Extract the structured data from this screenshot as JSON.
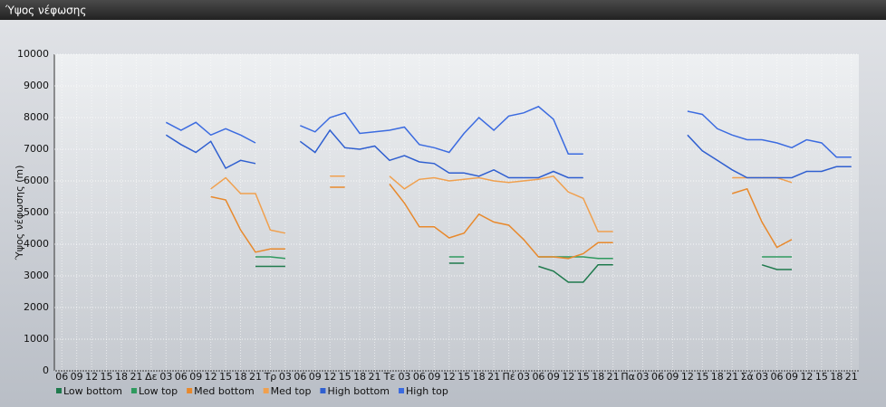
{
  "chart_data": {
    "type": "line",
    "title": "Ύψος νέφωσης",
    "y_label": "Ύψος νέφωσης (m)",
    "categories": [
      "06",
      "09",
      "12",
      "15",
      "18",
      "21",
      "Δε",
      "03",
      "06",
      "09",
      "12",
      "15",
      "18",
      "21",
      "Τρ",
      "03",
      "06",
      "09",
      "12",
      "15",
      "18",
      "21",
      "Τε",
      "03",
      "06",
      "09",
      "12",
      "15",
      "18",
      "21",
      "Πέ",
      "03",
      "06",
      "09",
      "12",
      "15",
      "18",
      "21",
      "Πα",
      "03",
      "06",
      "09",
      "12",
      "15",
      "18",
      "21",
      "Σά",
      "03",
      "06",
      "09",
      "12",
      "15",
      "18",
      "21"
    ],
    "ylim": [
      0,
      10000
    ],
    "yticks": [
      0,
      1000,
      2000,
      3000,
      4000,
      5000,
      6000,
      7000,
      8000,
      9000,
      10000
    ],
    "grid": true,
    "series": [
      {
        "name": "Low bottom",
        "color": "#1f7a4d",
        "values": [
          null,
          null,
          null,
          null,
          null,
          null,
          null,
          null,
          null,
          null,
          null,
          null,
          null,
          3300,
          3300,
          3300,
          null,
          null,
          null,
          null,
          null,
          null,
          null,
          null,
          null,
          null,
          3400,
          3400,
          null,
          null,
          null,
          null,
          3300,
          3150,
          2800,
          2800,
          3350,
          3350,
          null,
          null,
          null,
          null,
          null,
          null,
          null,
          null,
          null,
          3350,
          3200,
          3200,
          null,
          null,
          null,
          null
        ]
      },
      {
        "name": "Low top",
        "color": "#2e9a5e",
        "values": [
          null,
          null,
          null,
          null,
          null,
          null,
          null,
          null,
          null,
          null,
          null,
          null,
          null,
          3600,
          3600,
          3550,
          null,
          null,
          null,
          null,
          null,
          null,
          null,
          null,
          null,
          null,
          3600,
          3600,
          null,
          null,
          null,
          null,
          3600,
          3600,
          3600,
          3600,
          3550,
          3550,
          null,
          null,
          null,
          null,
          null,
          null,
          null,
          null,
          null,
          3600,
          3600,
          3600,
          null,
          null,
          null,
          null
        ]
      },
      {
        "name": "Med bottom",
        "color": "#e8892c",
        "values": [
          null,
          null,
          null,
          null,
          null,
          null,
          null,
          null,
          null,
          null,
          5500,
          5400,
          4450,
          3750,
          3850,
          3850,
          null,
          null,
          5800,
          5800,
          null,
          null,
          5900,
          5300,
          4550,
          4550,
          4200,
          4350,
          4950,
          4700,
          4600,
          4150,
          3600,
          3600,
          3550,
          3700,
          4050,
          4050,
          null,
          null,
          null,
          null,
          null,
          null,
          null,
          5600,
          5750,
          4700,
          3900,
          4150,
          null,
          null,
          null,
          null
        ]
      },
      {
        "name": "Med top",
        "color": "#f0a04e",
        "values": [
          null,
          null,
          null,
          null,
          null,
          null,
          null,
          null,
          null,
          null,
          5750,
          6100,
          5600,
          5600,
          4450,
          4350,
          null,
          null,
          6150,
          6150,
          null,
          null,
          6150,
          5750,
          6050,
          6100,
          6000,
          6050,
          6100,
          6000,
          5950,
          6000,
          6050,
          6150,
          5650,
          5450,
          4400,
          4400,
          null,
          null,
          null,
          null,
          null,
          null,
          null,
          6100,
          6100,
          6100,
          6100,
          5950,
          null,
          null,
          null,
          null
        ]
      },
      {
        "name": "High bottom",
        "color": "#2f5fd0",
        "values": [
          null,
          null,
          null,
          null,
          null,
          null,
          null,
          7450,
          7150,
          6900,
          7250,
          6400,
          6650,
          6550,
          null,
          null,
          7250,
          6900,
          7600,
          7050,
          7000,
          7100,
          6650,
          6800,
          6600,
          6550,
          6250,
          6250,
          6150,
          6350,
          6100,
          6100,
          6100,
          6300,
          6100,
          6100,
          null,
          null,
          null,
          null,
          null,
          null,
          7450,
          6950,
          6650,
          6350,
          6100,
          6100,
          6100,
          6100,
          6300,
          6300,
          6450,
          6450
        ]
      },
      {
        "name": "High top",
        "color": "#3b6be0",
        "values": [
          null,
          null,
          null,
          null,
          null,
          null,
          null,
          7850,
          7600,
          7850,
          7450,
          7650,
          7450,
          7200,
          null,
          null,
          7750,
          7550,
          8000,
          8150,
          7500,
          7550,
          7600,
          7700,
          7150,
          7050,
          6900,
          7500,
          8000,
          7600,
          8050,
          8150,
          8350,
          7950,
          6850,
          6850,
          null,
          null,
          null,
          null,
          null,
          null,
          8200,
          8100,
          7650,
          7450,
          7300,
          7300,
          7200,
          7050,
          7300,
          7200,
          6750,
          6750
        ]
      }
    ]
  }
}
